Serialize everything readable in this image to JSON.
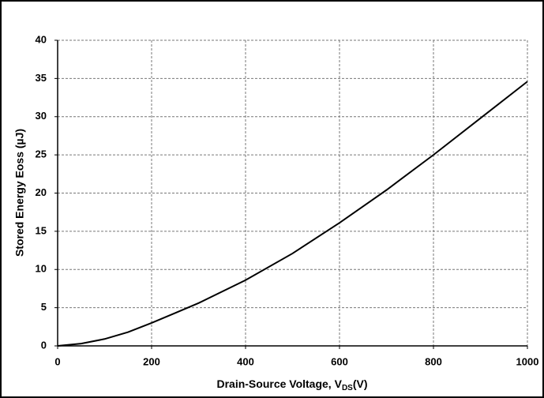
{
  "chart_data": {
    "type": "line",
    "xlabel": {
      "text": "Drain-Source Voltage, V",
      "subscript": "DS",
      "suffix": "(V)"
    },
    "ylabel": "Stored Energy Eoss (µJ)",
    "x": [
      0,
      50,
      100,
      150,
      200,
      250,
      300,
      400,
      500,
      600,
      700,
      800,
      900,
      1000
    ],
    "series": [
      {
        "name": "Eoss",
        "color": "#000000",
        "values": [
          0,
          0.3,
          0.9,
          1.8,
          3.0,
          4.3,
          5.6,
          8.6,
          12.1,
          16.1,
          20.4,
          25.0,
          29.8,
          34.6
        ]
      }
    ],
    "xlim": [
      0,
      1000
    ],
    "xticks": [
      0,
      200,
      400,
      600,
      800,
      1000
    ],
    "ylim": [
      0,
      40
    ],
    "yticks": [
      0,
      5,
      10,
      15,
      20,
      25,
      30,
      35,
      40
    ],
    "grid": true
  }
}
